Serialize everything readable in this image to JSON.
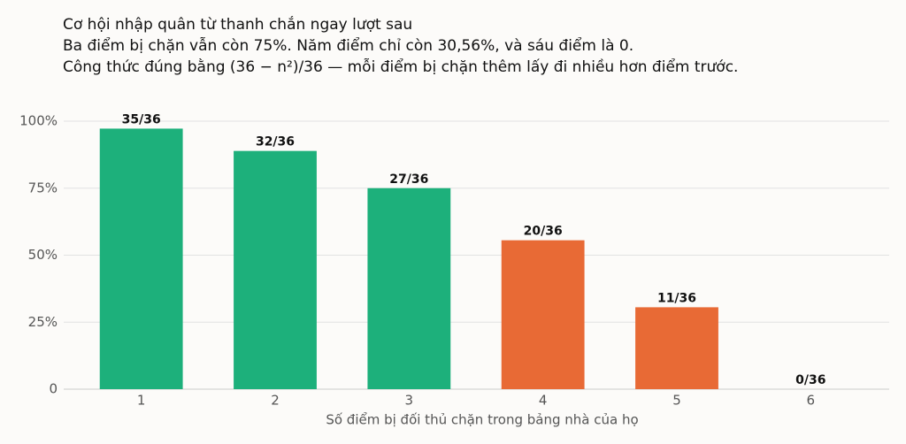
{
  "chart_data": {
    "type": "bar",
    "title": "Cơ hội nhập quân từ thanh chắn ngay lượt sau",
    "subtitle": [
      "Ba điểm bị chặn vẫn còn 75%. Năm điểm chỉ còn 30,56%, và sáu điểm là 0.",
      "Công thức đúng bằng (36 − n²)/36 — mỗi điểm bị chặn thêm lấy đi nhiều hơn điểm trước."
    ],
    "x_label": "Số điểm bị đối thủ chặn trong bảng nhà của họ",
    "categories": [
      "1",
      "2",
      "3",
      "4",
      "5",
      "6"
    ],
    "values": [
      97.22,
      88.89,
      75,
      55.56,
      30.56,
      0
    ],
    "value_labels": [
      "35/36",
      "32/36",
      "27/36",
      "20/36",
      "11/36",
      "0/36"
    ],
    "colors": [
      "#1db07b",
      "#1db07b",
      "#1db07b",
      "#e86a35",
      "#e86a35",
      "#e86a35"
    ],
    "ylim": [
      0,
      100
    ],
    "yticks": [
      {
        "value": 0,
        "label": "0"
      },
      {
        "value": 25,
        "label": "25%"
      },
      {
        "value": 50,
        "label": "50%"
      },
      {
        "value": 75,
        "label": "75%"
      },
      {
        "value": 100,
        "label": "100%"
      }
    ],
    "grid": true
  }
}
